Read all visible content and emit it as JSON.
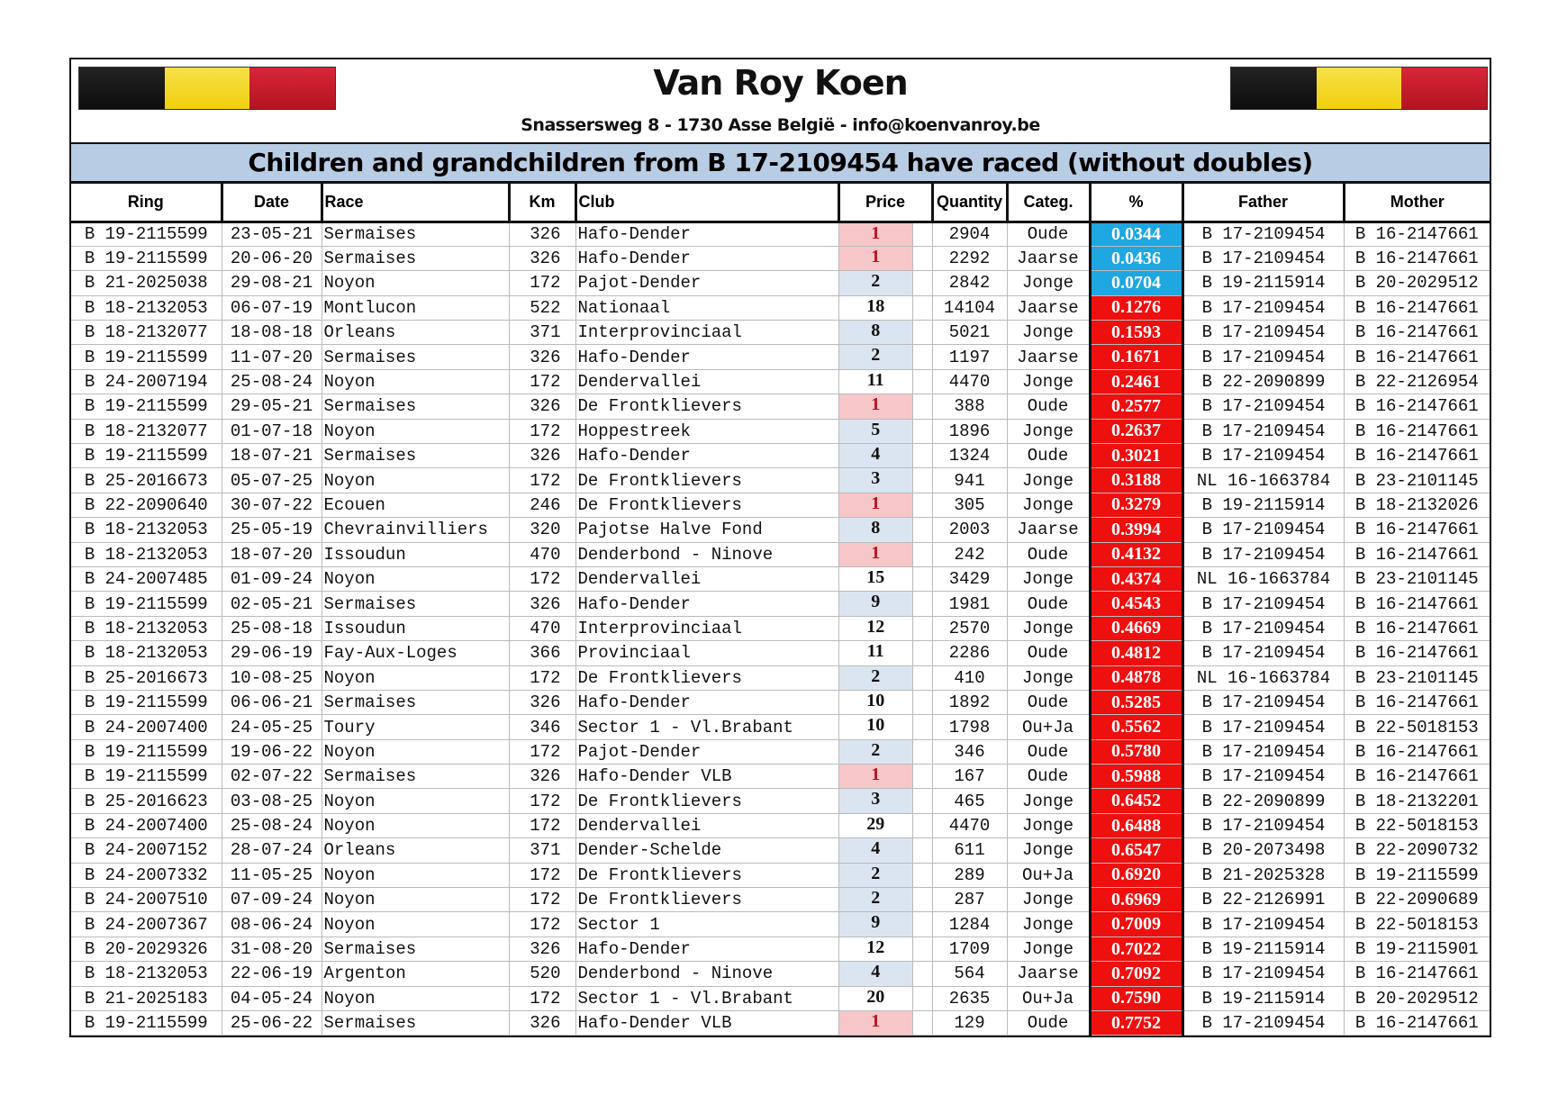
{
  "header": {
    "title": "Van Roy Koen",
    "address": "Snassersweg 8 - 1730 Asse België - info@koenvanroy.be",
    "subtitle": "Children and grandchildren from B 17-2109454 have raced (without doubles)"
  },
  "colors": {
    "pct_low": "#1ea7e1",
    "pct_high": "#ee0f0f",
    "price_first_bg": "#f7c6c9",
    "price_first_text": "#b4141f",
    "price_top10_bg": "#dbe5f1",
    "subtitle_bg": "#b8cce4"
  },
  "columns": [
    "Ring",
    "Date",
    "Race",
    "Km",
    "Club",
    "Price",
    "Quantity",
    "Categ.",
    "%",
    "Father",
    "Mother"
  ],
  "rows": [
    [
      "B 19-2115599",
      "23-05-21",
      "Sermaises",
      "326",
      "Hafo-Dender",
      "1",
      "2904",
      "Oude",
      "0.0344",
      "B 17-2109454",
      "B 16-2147661"
    ],
    [
      "B 19-2115599",
      "20-06-20",
      "Sermaises",
      "326",
      "Hafo-Dender",
      "1",
      "2292",
      "Jaarse",
      "0.0436",
      "B 17-2109454",
      "B 16-2147661"
    ],
    [
      "B 21-2025038",
      "29-08-21",
      "Noyon",
      "172",
      "Pajot-Dender",
      "2",
      "2842",
      "Jonge",
      "0.0704",
      "B 19-2115914",
      "B 20-2029512"
    ],
    [
      "B 18-2132053",
      "06-07-19",
      "Montlucon",
      "522",
      "Nationaal",
      "18",
      "14104",
      "Jaarse",
      "0.1276",
      "B 17-2109454",
      "B 16-2147661"
    ],
    [
      "B 18-2132077",
      "18-08-18",
      "Orleans",
      "371",
      "Interprovinciaal",
      "8",
      "5021",
      "Jonge",
      "0.1593",
      "B 17-2109454",
      "B 16-2147661"
    ],
    [
      "B 19-2115599",
      "11-07-20",
      "Sermaises",
      "326",
      "Hafo-Dender",
      "2",
      "1197",
      "Jaarse",
      "0.1671",
      "B 17-2109454",
      "B 16-2147661"
    ],
    [
      "B 24-2007194",
      "25-08-24",
      "Noyon",
      "172",
      "Dendervallei",
      "11",
      "4470",
      "Jonge",
      "0.2461",
      "B 22-2090899",
      "B 22-2126954"
    ],
    [
      "B 19-2115599",
      "29-05-21",
      "Sermaises",
      "326",
      "De Frontklievers",
      "1",
      "388",
      "Oude",
      "0.2577",
      "B 17-2109454",
      "B 16-2147661"
    ],
    [
      "B 18-2132077",
      "01-07-18",
      "Noyon",
      "172",
      "Hoppestreek",
      "5",
      "1896",
      "Jonge",
      "0.2637",
      "B 17-2109454",
      "B 16-2147661"
    ],
    [
      "B 19-2115599",
      "18-07-21",
      "Sermaises",
      "326",
      "Hafo-Dender",
      "4",
      "1324",
      "Oude",
      "0.3021",
      "B 17-2109454",
      "B 16-2147661"
    ],
    [
      "B 25-2016673",
      "05-07-25",
      "Noyon",
      "172",
      "De Frontklievers",
      "3",
      "941",
      "Jonge",
      "0.3188",
      "NL 16-1663784",
      "B 23-2101145"
    ],
    [
      "B 22-2090640",
      "30-07-22",
      "Ecouen",
      "246",
      "De Frontklievers",
      "1",
      "305",
      "Jonge",
      "0.3279",
      "B 19-2115914",
      "B 18-2132026"
    ],
    [
      "B 18-2132053",
      "25-05-19",
      "Chevrainvilliers",
      "320",
      "Pajotse Halve Fond",
      "8",
      "2003",
      "Jaarse",
      "0.3994",
      "B 17-2109454",
      "B 16-2147661"
    ],
    [
      "B 18-2132053",
      "18-07-20",
      "Issoudun",
      "470",
      "Denderbond - Ninove",
      "1",
      "242",
      "Oude",
      "0.4132",
      "B 17-2109454",
      "B 16-2147661"
    ],
    [
      "B 24-2007485",
      "01-09-24",
      "Noyon",
      "172",
      "Dendervallei",
      "15",
      "3429",
      "Jonge",
      "0.4374",
      "NL 16-1663784",
      "B 23-2101145"
    ],
    [
      "B 19-2115599",
      "02-05-21",
      "Sermaises",
      "326",
      "Hafo-Dender",
      "9",
      "1981",
      "Oude",
      "0.4543",
      "B 17-2109454",
      "B 16-2147661"
    ],
    [
      "B 18-2132053",
      "25-08-18",
      "Issoudun",
      "470",
      "Interprovinciaal",
      "12",
      "2570",
      "Jonge",
      "0.4669",
      "B 17-2109454",
      "B 16-2147661"
    ],
    [
      "B 18-2132053",
      "29-06-19",
      "Fay-Aux-Loges",
      "366",
      "Provinciaal",
      "11",
      "2286",
      "Oude",
      "0.4812",
      "B 17-2109454",
      "B 16-2147661"
    ],
    [
      "B 25-2016673",
      "10-08-25",
      "Noyon",
      "172",
      "De Frontklievers",
      "2",
      "410",
      "Jonge",
      "0.4878",
      "NL 16-1663784",
      "B 23-2101145"
    ],
    [
      "B 19-2115599",
      "06-06-21",
      "Sermaises",
      "326",
      "Hafo-Dender",
      "10",
      "1892",
      "Oude",
      "0.5285",
      "B 17-2109454",
      "B 16-2147661"
    ],
    [
      "B 24-2007400",
      "24-05-25",
      "Toury",
      "346",
      "Sector 1 - Vl.Brabant",
      "10",
      "1798",
      "Ou+Ja",
      "0.5562",
      "B 17-2109454",
      "B 22-5018153"
    ],
    [
      "B 19-2115599",
      "19-06-22",
      "Noyon",
      "172",
      "Pajot-Dender",
      "2",
      "346",
      "Oude",
      "0.5780",
      "B 17-2109454",
      "B 16-2147661"
    ],
    [
      "B 19-2115599",
      "02-07-22",
      "Sermaises",
      "326",
      "Hafo-Dender VLB",
      "1",
      "167",
      "Oude",
      "0.5988",
      "B 17-2109454",
      "B 16-2147661"
    ],
    [
      "B 25-2016623",
      "03-08-25",
      "Noyon",
      "172",
      "De Frontklievers",
      "3",
      "465",
      "Jonge",
      "0.6452",
      "B 22-2090899",
      "B 18-2132201"
    ],
    [
      "B 24-2007400",
      "25-08-24",
      "Noyon",
      "172",
      "Dendervallei",
      "29",
      "4470",
      "Jonge",
      "0.6488",
      "B 17-2109454",
      "B 22-5018153"
    ],
    [
      "B 24-2007152",
      "28-07-24",
      "Orleans",
      "371",
      "Dender-Schelde",
      "4",
      "611",
      "Jonge",
      "0.6547",
      "B 20-2073498",
      "B 22-2090732"
    ],
    [
      "B 24-2007332",
      "11-05-25",
      "Noyon",
      "172",
      "De Frontklievers",
      "2",
      "289",
      "Ou+Ja",
      "0.6920",
      "B 21-2025328",
      "B 19-2115599"
    ],
    [
      "B 24-2007510",
      "07-09-24",
      "Noyon",
      "172",
      "De Frontklievers",
      "2",
      "287",
      "Jonge",
      "0.6969",
      "B 22-2126991",
      "B 22-2090689"
    ],
    [
      "B 24-2007367",
      "08-06-24",
      "Noyon",
      "172",
      "Sector 1",
      "9",
      "1284",
      "Jonge",
      "0.7009",
      "B 17-2109454",
      "B 22-5018153"
    ],
    [
      "B 20-2029326",
      "31-08-20",
      "Sermaises",
      "326",
      "Hafo-Dender",
      "12",
      "1709",
      "Jonge",
      "0.7022",
      "B 19-2115914",
      "B 19-2115901"
    ],
    [
      "B 18-2132053",
      "22-06-19",
      "Argenton",
      "520",
      "Denderbond - Ninove",
      "4",
      "564",
      "Jaarse",
      "0.7092",
      "B 17-2109454",
      "B 16-2147661"
    ],
    [
      "B 21-2025183",
      "04-05-24",
      "Noyon",
      "172",
      "Sector 1 - Vl.Brabant",
      "20",
      "2635",
      "Ou+Ja",
      "0.7590",
      "B 19-2115914",
      "B 20-2029512"
    ],
    [
      "B 19-2115599",
      "25-06-22",
      "Sermaises",
      "326",
      "Hafo-Dender VLB",
      "1",
      "129",
      "Oude",
      "0.7752",
      "B 17-2109454",
      "B 16-2147661"
    ]
  ]
}
